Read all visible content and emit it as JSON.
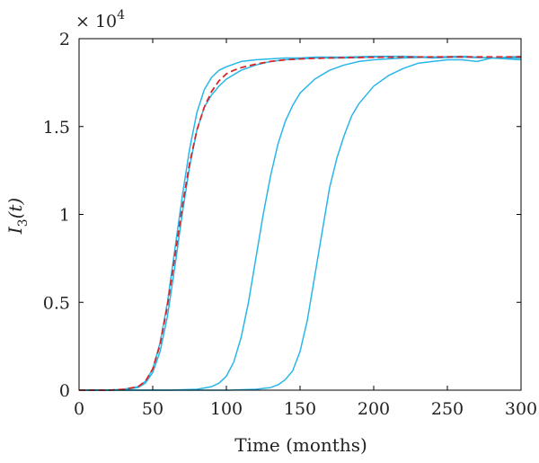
{
  "chart_data": {
    "type": "line",
    "xlabel": "Time (months)",
    "ylabel": "I",
    "ylabel_sub": "3",
    "ylabel_arg": "(t)",
    "y_multiplier": "× 10",
    "y_multiplier_exp": "4",
    "xlim": [
      0,
      300
    ],
    "ylim": [
      0,
      20000
    ],
    "x_ticks": [
      0,
      50,
      100,
      150,
      200,
      250,
      300
    ],
    "x_tick_labels": [
      "0",
      "50",
      "100",
      "150",
      "200",
      "250",
      "300"
    ],
    "y_ticks": [
      0,
      5000,
      10000,
      15000,
      20000
    ],
    "y_tick_labels": [
      "0",
      "0.5",
      "1",
      "1.5",
      "2"
    ],
    "grid": false,
    "colors": {
      "stochastic": "#29b6e8",
      "deterministic": "#d62728"
    },
    "series": [
      {
        "style": "solid",
        "color": "#29b6e8",
        "x": [
          0,
          20,
          30,
          40,
          45,
          50,
          55,
          60,
          65,
          70,
          75,
          80,
          85,
          90,
          95,
          100,
          110,
          120,
          130,
          140,
          150,
          160,
          180,
          200,
          220,
          240,
          260,
          280,
          300
        ],
        "y": [
          0,
          0,
          50,
          200,
          500,
          1200,
          2700,
          5000,
          8000,
          11000,
          13700,
          15800,
          17100,
          17800,
          18200,
          18400,
          18700,
          18800,
          18850,
          18900,
          18900,
          18950,
          18950,
          19000,
          19000,
          18950,
          19000,
          18900,
          19000
        ]
      },
      {
        "style": "solid",
        "color": "#29b6e8",
        "x": [
          0,
          20,
          30,
          40,
          45,
          50,
          55,
          60,
          65,
          70,
          75,
          80,
          85,
          90,
          95,
          100,
          110,
          120,
          130,
          140,
          150,
          160,
          180,
          200,
          220,
          240,
          260,
          280,
          300
        ],
        "y": [
          0,
          0,
          30,
          150,
          400,
          1000,
          2200,
          4200,
          7000,
          10000,
          12700,
          14800,
          16100,
          16800,
          17300,
          17700,
          18200,
          18500,
          18700,
          18800,
          18850,
          18900,
          18900,
          18950,
          19000,
          18900,
          18950,
          18900,
          18950
        ]
      },
      {
        "style": "solid",
        "color": "#29b6e8",
        "x": [
          0,
          60,
          80,
          90,
          95,
          100,
          105,
          110,
          115,
          120,
          125,
          130,
          135,
          140,
          145,
          150,
          160,
          170,
          180,
          190,
          200,
          220,
          240,
          260,
          280,
          300
        ],
        "y": [
          0,
          0,
          50,
          200,
          400,
          800,
          1600,
          3000,
          5000,
          7500,
          10000,
          12200,
          14000,
          15300,
          16200,
          16900,
          17700,
          18200,
          18500,
          18700,
          18800,
          18900,
          18950,
          18950,
          18900,
          18900
        ]
      },
      {
        "style": "solid",
        "color": "#29b6e8",
        "x": [
          0,
          100,
          120,
          130,
          135,
          140,
          145,
          150,
          155,
          160,
          165,
          170,
          175,
          180,
          185,
          190,
          200,
          210,
          220,
          230,
          240,
          250,
          260,
          270,
          280,
          290,
          300
        ],
        "y": [
          0,
          0,
          50,
          150,
          300,
          600,
          1100,
          2200,
          4000,
          6500,
          9000,
          11500,
          13200,
          14500,
          15600,
          16300,
          17300,
          17900,
          18300,
          18600,
          18700,
          18800,
          18800,
          18700,
          18900,
          18850,
          18800
        ]
      },
      {
        "style": "dashed",
        "color": "#d62728",
        "x": [
          0,
          20,
          30,
          40,
          45,
          50,
          55,
          60,
          65,
          70,
          75,
          80,
          85,
          90,
          95,
          100,
          105,
          110,
          120,
          130,
          140,
          150,
          160,
          180,
          200,
          220,
          240,
          260,
          280,
          300
        ],
        "y": [
          0,
          0,
          40,
          200,
          500,
          1200,
          2600,
          4800,
          7600,
          10400,
          12900,
          14800,
          16100,
          17000,
          17600,
          18000,
          18200,
          18350,
          18550,
          18700,
          18800,
          18850,
          18880,
          18920,
          18940,
          18950,
          18960,
          18960,
          18960,
          18960
        ]
      }
    ]
  }
}
